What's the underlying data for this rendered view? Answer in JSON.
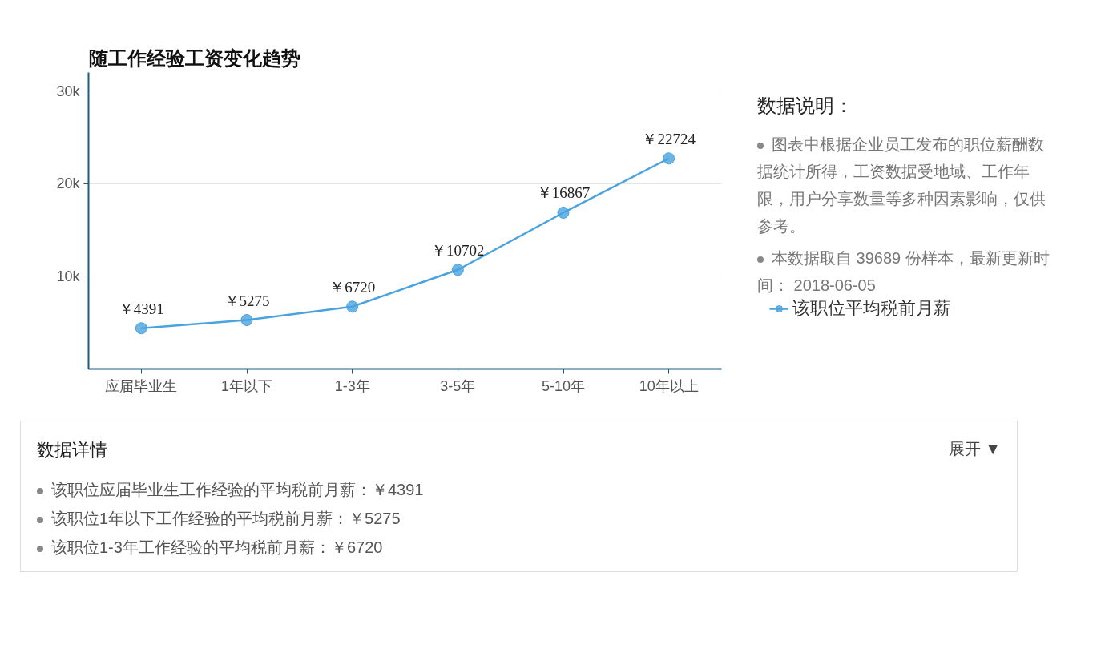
{
  "chart_data": {
    "type": "line",
    "title": "随工作经验工资变化趋势",
    "categories": [
      "应届毕业生",
      "1年以下",
      "1-3年",
      "3-5年",
      "5-10年",
      "10年以上"
    ],
    "series": [
      {
        "name": "该职位平均税前月薪",
        "color": "#4aa3df",
        "values": [
          4391,
          5275,
          6720,
          10702,
          16867,
          22724
        ],
        "value_labels": [
          "￥4391",
          "￥5275",
          "￥6720",
          "￥10702",
          "￥16867",
          "￥22724"
        ]
      }
    ],
    "ylim": [
      0,
      32000
    ],
    "yticks": [
      {
        "value": 0,
        "label": null
      },
      {
        "value": 10000,
        "label": "10k"
      },
      {
        "value": 20000,
        "label": "20k"
      },
      {
        "value": 30000,
        "label": "30k"
      }
    ],
    "grid": "y",
    "legend": "right",
    "marker": "circle",
    "line_style": "solid",
    "annotations": [
      "数据说明：",
      "图表中根据企业员工发布的职位薪酬数据统计所得，工资数据受地域、工作年限，用户分享数量等多种因素影响，仅供参考。",
      "本数据取自 39689 份样本，最新更新时间： 2018-06-05",
      "数据详情",
      "展开 ▼",
      "该职位应届毕业生工作经验的平均税前月薪：￥4391",
      "该职位1年以下工作经验的平均税前月薪：￥5275",
      "该职位1-3年工作经验的平均税前月薪：￥6720"
    ]
  }
}
